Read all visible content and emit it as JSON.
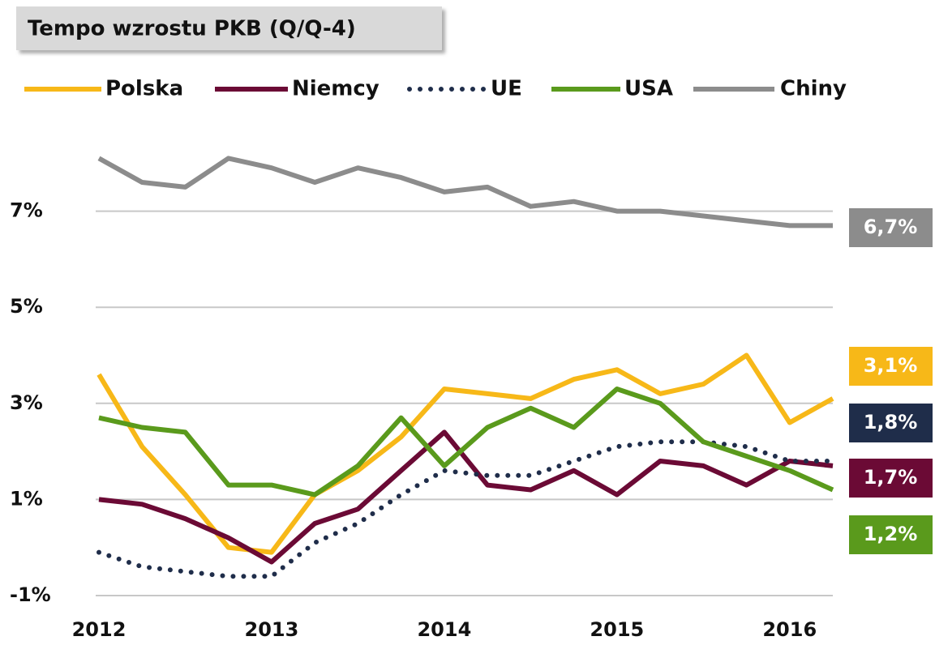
{
  "chart_data": {
    "type": "line",
    "title": "Tempo wzrostu PKB (Q/Q-4)",
    "x": [
      2012,
      2012.25,
      2012.5,
      2012.75,
      2013,
      2013.25,
      2013.5,
      2013.75,
      2014,
      2014.25,
      2014.5,
      2014.75,
      2015,
      2015.25,
      2015.5,
      2015.75,
      2016,
      2016.25
    ],
    "xlim": [
      2012,
      2016.25
    ],
    "xticks": [
      2012,
      2013,
      2014,
      2015,
      2016
    ],
    "ylim": [
      -1,
      9
    ],
    "yticks": [
      {
        "value": -1,
        "label": "-1%"
      },
      {
        "value": 1,
        "label": "1%"
      },
      {
        "value": 3,
        "label": "3%"
      },
      {
        "value": 5,
        "label": "5%"
      },
      {
        "value": 7,
        "label": "7%"
      }
    ],
    "grid": true,
    "legend": "top",
    "series": [
      {
        "name": "Polska",
        "color": "#f7b818",
        "style": "solid",
        "values": [
          3.6,
          2.1,
          1.1,
          0.0,
          -0.1,
          1.1,
          1.6,
          2.3,
          3.3,
          3.2,
          3.1,
          3.5,
          3.7,
          3.2,
          3.4,
          4.0,
          2.6,
          3.1
        ],
        "value_labels": [
          null,
          null,
          null,
          null,
          null,
          null,
          null,
          null,
          null,
          null,
          null,
          null,
          null,
          null,
          null,
          null,
          null,
          "3,1%"
        ]
      },
      {
        "name": "Niemcy",
        "color": "#6b0a35",
        "style": "solid",
        "values": [
          1.0,
          0.9,
          0.6,
          0.2,
          -0.3,
          0.5,
          0.8,
          1.6,
          2.4,
          1.3,
          1.2,
          1.6,
          1.1,
          1.8,
          1.7,
          1.3,
          1.8,
          1.7
        ],
        "value_labels": [
          null,
          null,
          null,
          null,
          null,
          null,
          null,
          null,
          null,
          null,
          null,
          null,
          null,
          null,
          null,
          null,
          null,
          "1,7%"
        ]
      },
      {
        "name": "UE",
        "color": "#1f2d4a",
        "style": "dotted",
        "values": [
          -0.1,
          -0.4,
          -0.5,
          -0.6,
          -0.6,
          0.1,
          0.5,
          1.1,
          1.6,
          1.5,
          1.5,
          1.8,
          2.1,
          2.2,
          2.2,
          2.1,
          1.8,
          1.8
        ],
        "value_labels": [
          null,
          null,
          null,
          null,
          null,
          null,
          null,
          null,
          null,
          null,
          null,
          null,
          null,
          null,
          null,
          null,
          null,
          "1,8%"
        ]
      },
      {
        "name": "USA",
        "color": "#5a9a1c",
        "style": "solid",
        "values": [
          2.7,
          2.5,
          2.4,
          1.3,
          1.3,
          1.1,
          1.7,
          2.7,
          1.7,
          2.5,
          2.9,
          2.5,
          3.3,
          3.0,
          2.2,
          1.9,
          1.6,
          1.2
        ],
        "value_labels": [
          null,
          null,
          null,
          null,
          null,
          null,
          null,
          null,
          null,
          null,
          null,
          null,
          null,
          null,
          null,
          null,
          null,
          "1,2%"
        ]
      },
      {
        "name": "Chiny",
        "color": "#8c8c8c",
        "style": "solid",
        "values": [
          8.1,
          7.6,
          7.5,
          8.1,
          7.9,
          7.6,
          7.9,
          7.7,
          7.4,
          7.5,
          7.1,
          7.2,
          7.0,
          7.0,
          6.9,
          6.8,
          6.7,
          6.7
        ],
        "value_labels": [
          null,
          null,
          null,
          null,
          null,
          null,
          null,
          null,
          null,
          null,
          null,
          null,
          null,
          null,
          null,
          null,
          null,
          "6,7%"
        ]
      }
    ]
  }
}
